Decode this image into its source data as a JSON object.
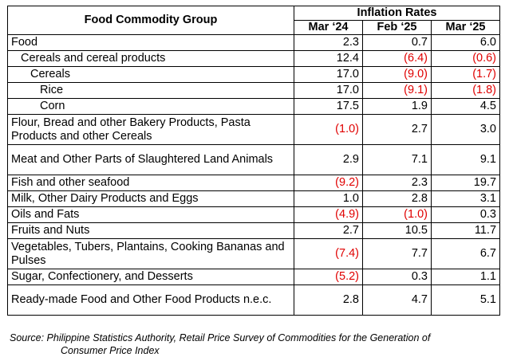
{
  "header": {
    "group_label": "Food Commodity Group",
    "rates_label": "Inflation Rates",
    "periods": [
      "Mar ‘24",
      "Feb ‘25",
      "Mar ‘25"
    ]
  },
  "rows": [
    {
      "label": "Food",
      "indent": 0,
      "values": [
        "2.3",
        "0.7",
        "6.0"
      ],
      "negative": [
        false,
        false,
        false
      ]
    },
    {
      "label": "Cereals and cereal products",
      "indent": 1,
      "values": [
        "12.4",
        "(6.4)",
        "(0.6)"
      ],
      "negative": [
        false,
        true,
        true
      ]
    },
    {
      "label": "Cereals",
      "indent": 2,
      "values": [
        "17.0",
        "(9.0)",
        "(1.7)"
      ],
      "negative": [
        false,
        true,
        true
      ]
    },
    {
      "label": "Rice",
      "indent": 3,
      "values": [
        "17.0",
        "(9.1)",
        "(1.8)"
      ],
      "negative": [
        false,
        true,
        true
      ]
    },
    {
      "label": "Corn",
      "indent": 3,
      "values": [
        "17.5",
        "1.9",
        "4.5"
      ],
      "negative": [
        false,
        false,
        false
      ]
    },
    {
      "label": "Flour, Bread and other Bakery Products, Pasta Products and other Cereals",
      "indent": 0,
      "values": [
        "(1.0)",
        "2.7",
        "3.0"
      ],
      "negative": [
        true,
        false,
        false
      ]
    },
    {
      "label": "Meat and Other Parts of Slaughtered Land Animals",
      "indent": 0,
      "values": [
        "2.9",
        "7.1",
        "9.1"
      ],
      "negative": [
        false,
        false,
        false
      ]
    },
    {
      "label": "Fish and other seafood",
      "indent": 0,
      "values": [
        "(9.2)",
        "2.3",
        "19.7"
      ],
      "negative": [
        true,
        false,
        false
      ]
    },
    {
      "label": "Milk, Other Dairy Products and Eggs",
      "indent": 0,
      "values": [
        "1.0",
        "2.8",
        "3.1"
      ],
      "negative": [
        false,
        false,
        false
      ]
    },
    {
      "label": "Oils and Fats",
      "indent": 0,
      "values": [
        "(4.9)",
        "(1.0)",
        "0.3"
      ],
      "negative": [
        true,
        true,
        false
      ]
    },
    {
      "label": "Fruits and Nuts",
      "indent": 0,
      "values": [
        "2.7",
        "10.5",
        "11.7"
      ],
      "negative": [
        false,
        false,
        false
      ]
    },
    {
      "label": "Vegetables, Tubers, Plantains, Cooking Bananas and Pulses",
      "indent": 0,
      "values": [
        "(7.4)",
        "7.7",
        "6.7"
      ],
      "negative": [
        true,
        false,
        false
      ]
    },
    {
      "label": "Sugar, Confectionery, and Desserts",
      "indent": 0,
      "values": [
        "(5.2)",
        "0.3",
        "1.1"
      ],
      "negative": [
        true,
        false,
        false
      ]
    },
    {
      "label": "Ready-made Food and Other Food Products n.e.c.",
      "indent": 0,
      "values": [
        "2.8",
        "4.7",
        "5.1"
      ],
      "negative": [
        false,
        false,
        false
      ]
    }
  ],
  "source": {
    "line1": "Source: Philippine Statistics Authority, Retail Price Survey of Commodities for the Generation of",
    "line2": "Consumer Price Index"
  },
  "colors": {
    "negative": "#e00000",
    "text": "#000000",
    "border": "#000000"
  }
}
